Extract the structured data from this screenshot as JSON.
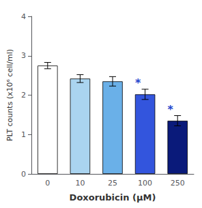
{
  "chart_data": {
    "type": "bar",
    "categories": [
      "0",
      "10",
      "25",
      "100",
      "250"
    ],
    "values": [
      2.75,
      2.42,
      2.35,
      2.02,
      1.35
    ],
    "errors": [
      0.08,
      0.1,
      0.12,
      0.13,
      0.13
    ],
    "colors": [
      "#ffffff",
      "#aad4f0",
      "#6ab0e8",
      "#3355dd",
      "#0a1a7a"
    ],
    "xlabel": "Doxorubicin (μM)",
    "ylabel": "PLT counts (x10⁶ cell/ml)",
    "ylim": [
      0,
      4
    ],
    "yticks": [
      0,
      1,
      2,
      3,
      4
    ],
    "grid": false,
    "annotations": [
      {
        "text": "*",
        "x": "100",
        "color": "#2244cc"
      },
      {
        "text": "*",
        "x": "250",
        "color": "#2244cc"
      }
    ]
  }
}
